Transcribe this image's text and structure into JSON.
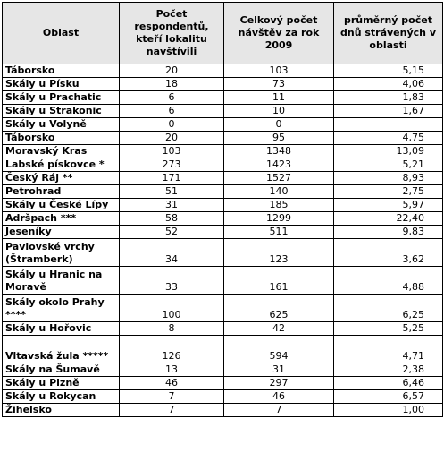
{
  "table": {
    "headers": [
      "Oblast",
      "Počet respondentů, kteří lokalitu navštívili",
      "Celkový počet návštěv za rok 2009",
      "průměrný počet dnů strávených v oblasti"
    ],
    "rows": [
      {
        "area": "Táborsko",
        "respondents": "20",
        "visits": "103",
        "avg_days": "5,15"
      },
      {
        "area": "Skály u Písku",
        "respondents": "18",
        "visits": "73",
        "avg_days": "4,06"
      },
      {
        "area": "Skály u Prachatic",
        "respondents": "6",
        "visits": "11",
        "avg_days": "1,83"
      },
      {
        "area": "Skály u Strakonic",
        "respondents": "6",
        "visits": "10",
        "avg_days": "1,67"
      },
      {
        "area": "Skály u Volyně",
        "respondents": "0",
        "visits": "0",
        "avg_days": ""
      },
      {
        "area": "Táborsko",
        "respondents": "20",
        "visits": "95",
        "avg_days": "4,75"
      },
      {
        "area": "Moravský Kras",
        "respondents": "103",
        "visits": "1348",
        "avg_days": "13,09"
      },
      {
        "area": "Labské pískovce *",
        "respondents": "273",
        "visits": "1423",
        "avg_days": "5,21"
      },
      {
        "area": "Český Ráj **",
        "respondents": "171",
        "visits": "1527",
        "avg_days": "8,93"
      },
      {
        "area": "Petrohrad",
        "respondents": "51",
        "visits": "140",
        "avg_days": "2,75"
      },
      {
        "area": "Skály u České Lípy",
        "respondents": "31",
        "visits": "185",
        "avg_days": "5,97"
      },
      {
        "area": "Adršpach ***",
        "respondents": "58",
        "visits": "1299",
        "avg_days": "22,40"
      },
      {
        "area": "Jeseníky",
        "respondents": "52",
        "visits": "511",
        "avg_days": "9,83"
      },
      {
        "area": "Pavlovské vrchy (Štramberk)",
        "respondents": "34",
        "visits": "123",
        "avg_days": "3,62"
      },
      {
        "area": "Skály u Hranic na Moravě",
        "respondents": "33",
        "visits": "161",
        "avg_days": "4,88"
      },
      {
        "area": "Skály okolo Prahy ****",
        "respondents": "100",
        "visits": "625",
        "avg_days": "6,25"
      },
      {
        "area": "Skály u Hořovic",
        "respondents": "8",
        "visits": "42",
        "avg_days": "5,25"
      },
      {
        "area": "Vltavská žula *****",
        "respondents": "126",
        "visits": "594",
        "avg_days": "4,71"
      },
      {
        "area": "Skály na Šumavě",
        "respondents": "13",
        "visits": "31",
        "avg_days": "2,38"
      },
      {
        "area": "Skály u Plzně",
        "respondents": "46",
        "visits": "297",
        "avg_days": "6,46"
      },
      {
        "area": "Skály u Rokycan",
        "respondents": "7",
        "visits": "46",
        "avg_days": "6,57"
      },
      {
        "area": "Žihelsko",
        "respondents": "7",
        "visits": "7",
        "avg_days": "1,00"
      }
    ]
  }
}
